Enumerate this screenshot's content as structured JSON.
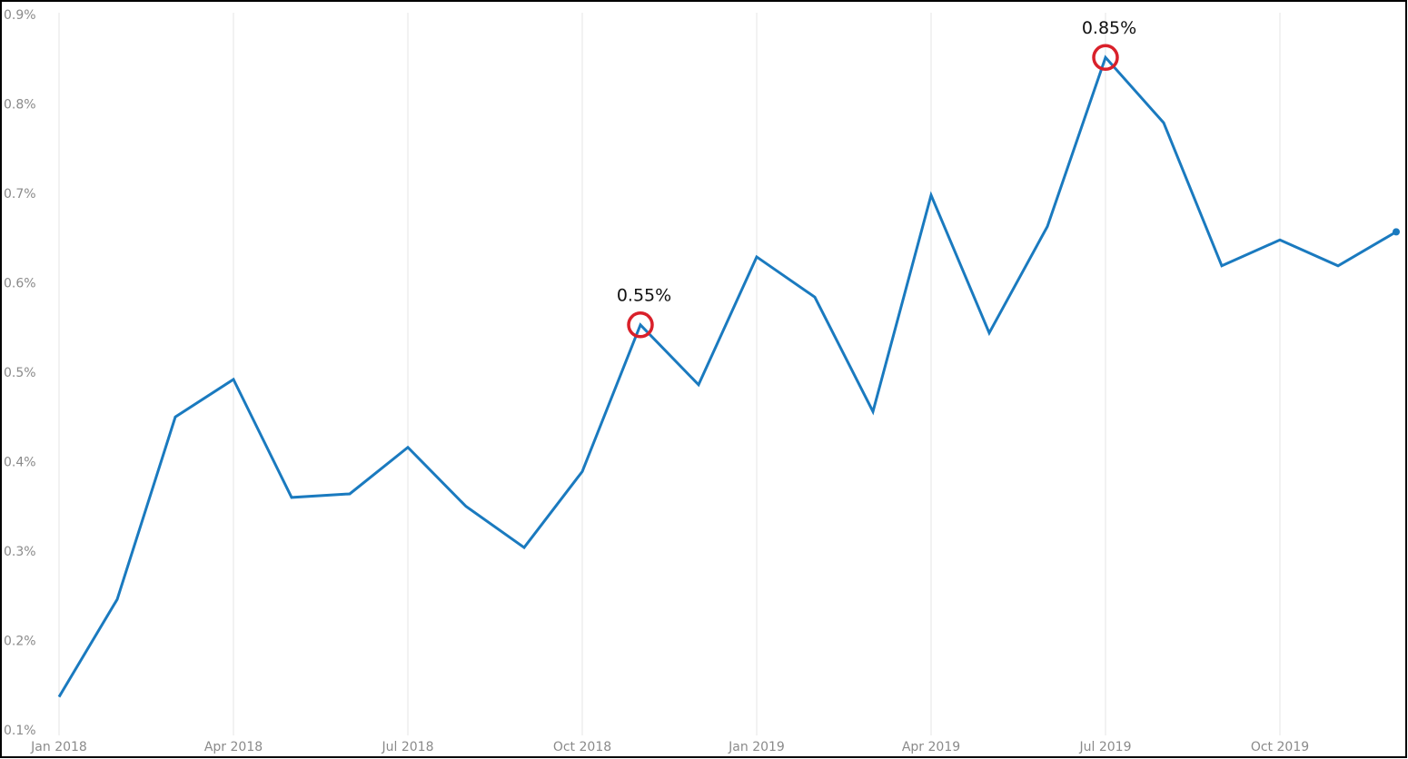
{
  "chart_data": {
    "type": "line",
    "categories": [
      "Jan 2018",
      null,
      null,
      "Apr 2018",
      null,
      null,
      "Jul 2018",
      null,
      null,
      "Oct 2018",
      null,
      null,
      "Jan 2019",
      null,
      null,
      "Apr 2019",
      null,
      null,
      "Jul 2019",
      null,
      null,
      "Oct 2019",
      null,
      null
    ],
    "series": [
      {
        "color": "#1a7abf",
        "values": [
          0.138,
          0.247,
          0.451,
          0.493,
          0.361,
          0.365,
          0.417,
          0.351,
          0.305,
          0.39,
          0.554,
          0.487,
          0.63,
          0.585,
          0.457,
          0.699,
          0.545,
          0.664,
          0.853,
          0.78,
          0.62,
          0.649,
          0.62,
          0.658
        ],
        "value_labels": [
          null,
          null,
          null,
          null,
          null,
          null,
          null,
          null,
          null,
          null,
          "0.55%",
          null,
          null,
          null,
          null,
          null,
          null,
          null,
          "0.85%",
          null,
          null,
          null,
          null,
          null
        ]
      }
    ],
    "ylim": [
      0.1,
      0.9
    ],
    "yticks": [
      {
        "value": 0.1,
        "label": "0.1%"
      },
      {
        "value": 0.2,
        "label": "0.2%"
      },
      {
        "value": 0.3,
        "label": "0.3%"
      },
      {
        "value": 0.4,
        "label": "0.4%"
      },
      {
        "value": 0.5,
        "label": "0.5%"
      },
      {
        "value": 0.6,
        "label": "0.6%"
      },
      {
        "value": 0.7,
        "label": "0.7%"
      },
      {
        "value": 0.8,
        "label": "0.8%"
      },
      {
        "value": 0.9,
        "label": "0.9%"
      }
    ],
    "x_grid": true,
    "highlight_color": "#d9202a"
  }
}
